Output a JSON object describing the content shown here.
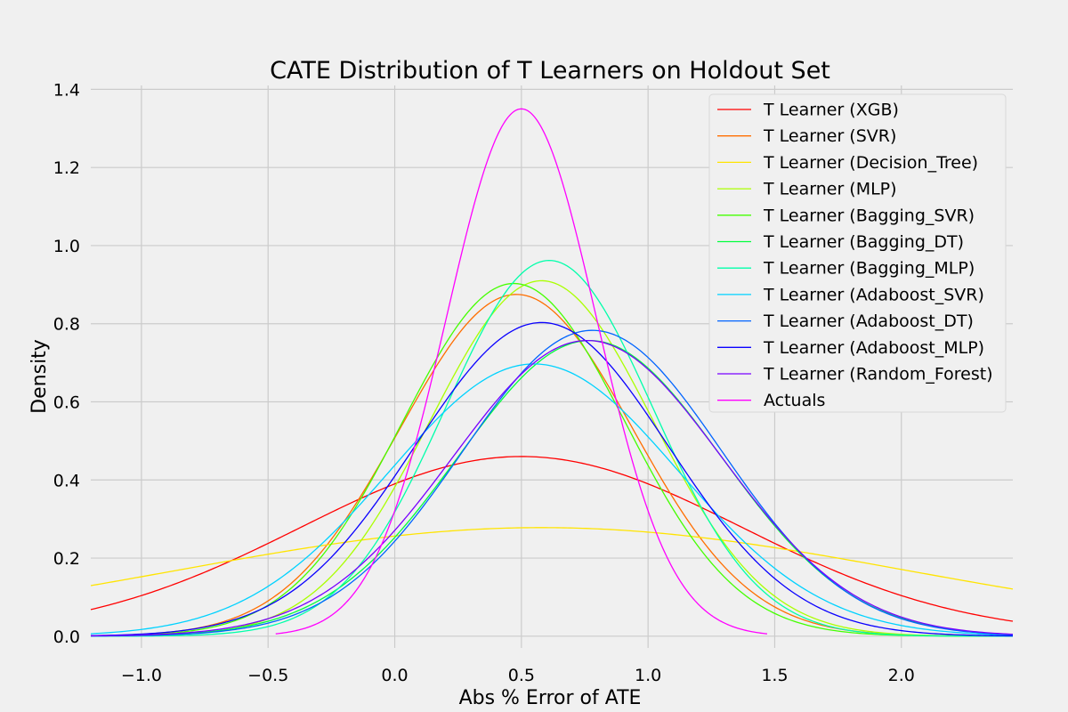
{
  "chart_data": {
    "type": "line",
    "title": "CATE Distribution of T Learners on Holdout Set",
    "xlabel": "Abs % Error of ATE",
    "ylabel": "Density",
    "xlim": [
      -1.2,
      2.44
    ],
    "ylim": [
      -0.03,
      1.41
    ],
    "xticks": [
      -1.0,
      -0.5,
      0.0,
      0.5,
      1.0,
      1.5,
      2.0
    ],
    "xtick_labels": [
      "−1.0",
      "−0.5",
      "0.0",
      "0.5",
      "1.0",
      "1.5",
      "2.0"
    ],
    "yticks": [
      0.0,
      0.2,
      0.4,
      0.6,
      0.8,
      1.0,
      1.2,
      1.4
    ],
    "ytick_labels": [
      "0.0",
      "0.2",
      "0.4",
      "0.6",
      "0.8",
      "1.0",
      "1.2",
      "1.4"
    ],
    "grid": true,
    "legend_position": "top-right",
    "series": [
      {
        "name": "T Learner (XGB)",
        "color": "#ff0000",
        "peak_x": 0.5,
        "peak_density": 0.46,
        "sigma": 0.87,
        "x_range": [
          -1.2,
          2.44
        ]
      },
      {
        "name": "T Learner (SVR)",
        "color": "#ff6e00",
        "peak_x": 0.48,
        "peak_density": 0.875,
        "sigma": 0.46,
        "x_range": [
          -1.2,
          2.44
        ]
      },
      {
        "name": "T Learner (Decision_Tree)",
        "color": "#ffe400",
        "peak_x": 0.58,
        "peak_density": 0.278,
        "sigma": 1.44,
        "x_range": [
          -1.2,
          2.44
        ]
      },
      {
        "name": "T Learner (MLP)",
        "color": "#aaff00",
        "peak_x": 0.58,
        "peak_density": 0.91,
        "sigma": 0.44,
        "x_range": [
          -1.2,
          2.44
        ]
      },
      {
        "name": "T Learner (Bagging_SVR)",
        "color": "#44ff00",
        "peak_x": 0.47,
        "peak_density": 0.903,
        "sigma": 0.44,
        "x_range": [
          -1.2,
          2.44
        ]
      },
      {
        "name": "T Learner (Bagging_DT)",
        "color": "#00ff3c",
        "peak_x": 0.77,
        "peak_density": 0.757,
        "sigma": 0.52,
        "x_range": [
          -1.2,
          2.44
        ]
      },
      {
        "name": "T Learner (Bagging_MLP)",
        "color": "#00ffaa",
        "peak_x": 0.61,
        "peak_density": 0.962,
        "sigma": 0.41,
        "x_range": [
          -1.2,
          2.44
        ]
      },
      {
        "name": "T Learner (Adaboost_SVR)",
        "color": "#00d2ff",
        "peak_x": 0.55,
        "peak_density": 0.697,
        "sigma": 0.57,
        "x_range": [
          -1.2,
          2.44
        ]
      },
      {
        "name": "T Learner (Adaboost_DT)",
        "color": "#0064ff",
        "peak_x": 0.78,
        "peak_density": 0.783,
        "sigma": 0.51,
        "x_range": [
          -1.2,
          2.44
        ]
      },
      {
        "name": "T Learner (Adaboost_MLP)",
        "color": "#0a00ff",
        "peak_x": 0.58,
        "peak_density": 0.803,
        "sigma": 0.5,
        "x_range": [
          -1.2,
          2.44
        ]
      },
      {
        "name": "T Learner (Random_Forest)",
        "color": "#7800ff",
        "peak_x": 0.76,
        "peak_density": 0.757,
        "sigma": 0.53,
        "x_range": [
          -1.2,
          2.44
        ]
      },
      {
        "name": "Actuals",
        "color": "#ff00ff",
        "peak_x": 0.5,
        "peak_density": 1.35,
        "sigma": 0.295,
        "x_range": [
          -0.47,
          1.47
        ]
      }
    ]
  },
  "colors": {
    "background": "#f0f0f0",
    "grid": "#cbcbcb",
    "legend_border": "#d8d8d8"
  }
}
